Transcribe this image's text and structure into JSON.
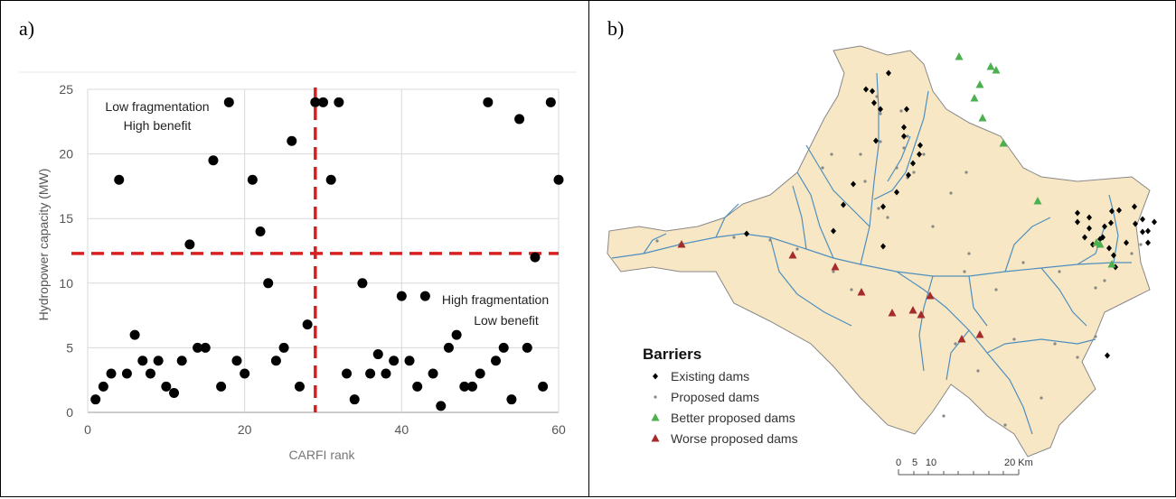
{
  "panels": {
    "a_label": "a)",
    "b_label": "b)"
  },
  "chart_data": {
    "type": "scatter",
    "xlabel": "CARFI rank",
    "ylabel": "Hydropower capacity (MW)",
    "xlim": [
      0,
      60
    ],
    "ylim": [
      0,
      25
    ],
    "xticks": [
      0,
      20,
      40,
      60
    ],
    "yticks": [
      0,
      5,
      10,
      15,
      20,
      25
    ],
    "grid": true,
    "thresholds": {
      "x": 29,
      "y": 12.3
    },
    "annotations": {
      "top_left_line1": "Low fragmentation",
      "top_left_line2": "High benefit",
      "bottom_right_line1": "High fragmentation",
      "bottom_right_line2": "Low benefit"
    },
    "points": [
      [
        1,
        1
      ],
      [
        2,
        2
      ],
      [
        3,
        3
      ],
      [
        4,
        18
      ],
      [
        5,
        3
      ],
      [
        6,
        6
      ],
      [
        7,
        4
      ],
      [
        8,
        3
      ],
      [
        9,
        4
      ],
      [
        10,
        2
      ],
      [
        11,
        1.5
      ],
      [
        12,
        4
      ],
      [
        13,
        13
      ],
      [
        14,
        5
      ],
      [
        15,
        5
      ],
      [
        16,
        19.5
      ],
      [
        17,
        2
      ],
      [
        18,
        24
      ],
      [
        19,
        4
      ],
      [
        20,
        3
      ],
      [
        21,
        18
      ],
      [
        22,
        14
      ],
      [
        23,
        10
      ],
      [
        24,
        4
      ],
      [
        25,
        5
      ],
      [
        26,
        21
      ],
      [
        27,
        2
      ],
      [
        28,
        6.8
      ],
      [
        29,
        24
      ],
      [
        30,
        24
      ],
      [
        31,
        18
      ],
      [
        32,
        24
      ],
      [
        33,
        3
      ],
      [
        34,
        1
      ],
      [
        35,
        10
      ],
      [
        36,
        3
      ],
      [
        37,
        4.5
      ],
      [
        38,
        3
      ],
      [
        39,
        4
      ],
      [
        40,
        9
      ],
      [
        41,
        4
      ],
      [
        42,
        2
      ],
      [
        43,
        9
      ],
      [
        44,
        3
      ],
      [
        45,
        0.5
      ],
      [
        46,
        5
      ],
      [
        47,
        6
      ],
      [
        48,
        2
      ],
      [
        49,
        2
      ],
      [
        50,
        3
      ],
      [
        51,
        24
      ],
      [
        52,
        4
      ],
      [
        53,
        5
      ],
      [
        54,
        1
      ],
      [
        55,
        22.7
      ],
      [
        56,
        5
      ],
      [
        57,
        12
      ],
      [
        58,
        2
      ],
      [
        59,
        24
      ],
      [
        60,
        18
      ]
    ]
  },
  "map": {
    "legend_title": "Barriers",
    "legend_items": [
      {
        "label": "Existing dams",
        "color": "#000000",
        "symbol": "diamond"
      },
      {
        "label": "Proposed dams",
        "color": "#888888",
        "symbol": "dot"
      },
      {
        "label": "Better proposed dams",
        "color": "#4caf50",
        "symbol": "triangle"
      },
      {
        "label": "Worse proposed dams",
        "color": "#a52a2a",
        "symbol": "triangle"
      }
    ],
    "scale_labels": [
      "0",
      "5",
      "10",
      "20 Km"
    ],
    "basin_color": "#f7e7c4",
    "river_color": "#4f8fbf"
  }
}
